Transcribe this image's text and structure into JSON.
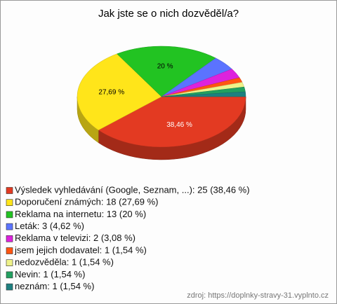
{
  "chart_data": {
    "type": "pie",
    "title": "Jak jste se o nich dozvěděl/a?",
    "categories": [
      "Výsledek vyhledávání (Google, Seznam, ...): 25 (38,46 %)",
      "Doporučení známých: 18 (27,69 %)",
      "Reklama na internetu: 13 (20 %)",
      "Leták: 3 (4,62 %)",
      "Reklama v televizi: 2 (3,08 %)",
      "jsem jejich dodavatel: 1 (1,54 %)",
      "nedozvěděla: 1 (1,54 %)",
      "Nevin: 1 (1,54 %)",
      "neznám: 1 (1,54 %)"
    ],
    "values": [
      38.46,
      27.69,
      20,
      4.62,
      3.08,
      1.54,
      1.54,
      1.54,
      1.54
    ],
    "value_labels": [
      "38,46 %",
      "27,69 %",
      "20 %",
      null,
      null,
      null,
      null,
      null,
      null
    ],
    "colors": [
      "#e33a22",
      "#ffe51a",
      "#22c322",
      "#5b73ff",
      "#dd22dd",
      "#ff5511",
      "#eef28a",
      "#22a060",
      "#1e8080"
    ],
    "source": "zdroj: https://doplnky-stravy-31.vyplnto.cz"
  }
}
